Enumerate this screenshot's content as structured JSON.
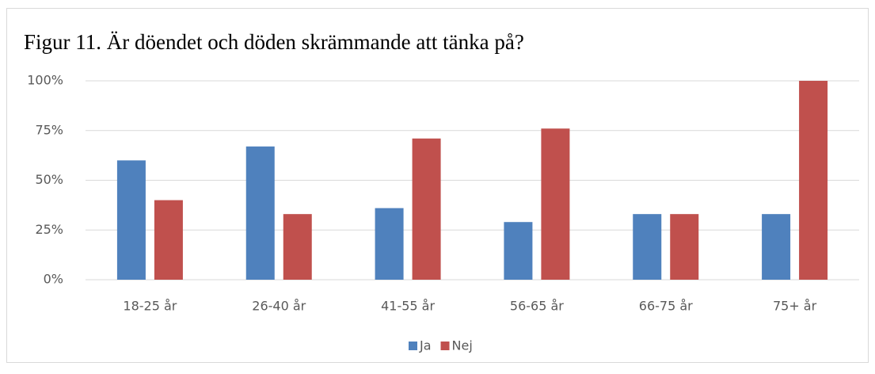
{
  "chart_data": {
    "type": "bar",
    "title": "Figur 11. Är döendet och döden skrämmande att tänka på?",
    "categories": [
      "18-25 år",
      "26-40 år",
      "41-55 år",
      "56-65 år",
      "66-75 år",
      "75+ år"
    ],
    "series": [
      {
        "name": "Ja",
        "color": "#4f81bd",
        "values": [
          60,
          67,
          36,
          29,
          33,
          33
        ]
      },
      {
        "name": "Nej",
        "color": "#c0504d",
        "values": [
          40,
          33,
          71,
          76,
          33,
          100
        ]
      }
    ],
    "ylim": [
      0,
      100
    ],
    "yticks": [
      {
        "value": 0,
        "label": "0%"
      },
      {
        "value": 25,
        "label": "25%"
      },
      {
        "value": 50,
        "label": "50%"
      },
      {
        "value": 75,
        "label": "75%"
      },
      {
        "value": 100,
        "label": "100%"
      }
    ],
    "grid": true,
    "legend": "bottom"
  }
}
